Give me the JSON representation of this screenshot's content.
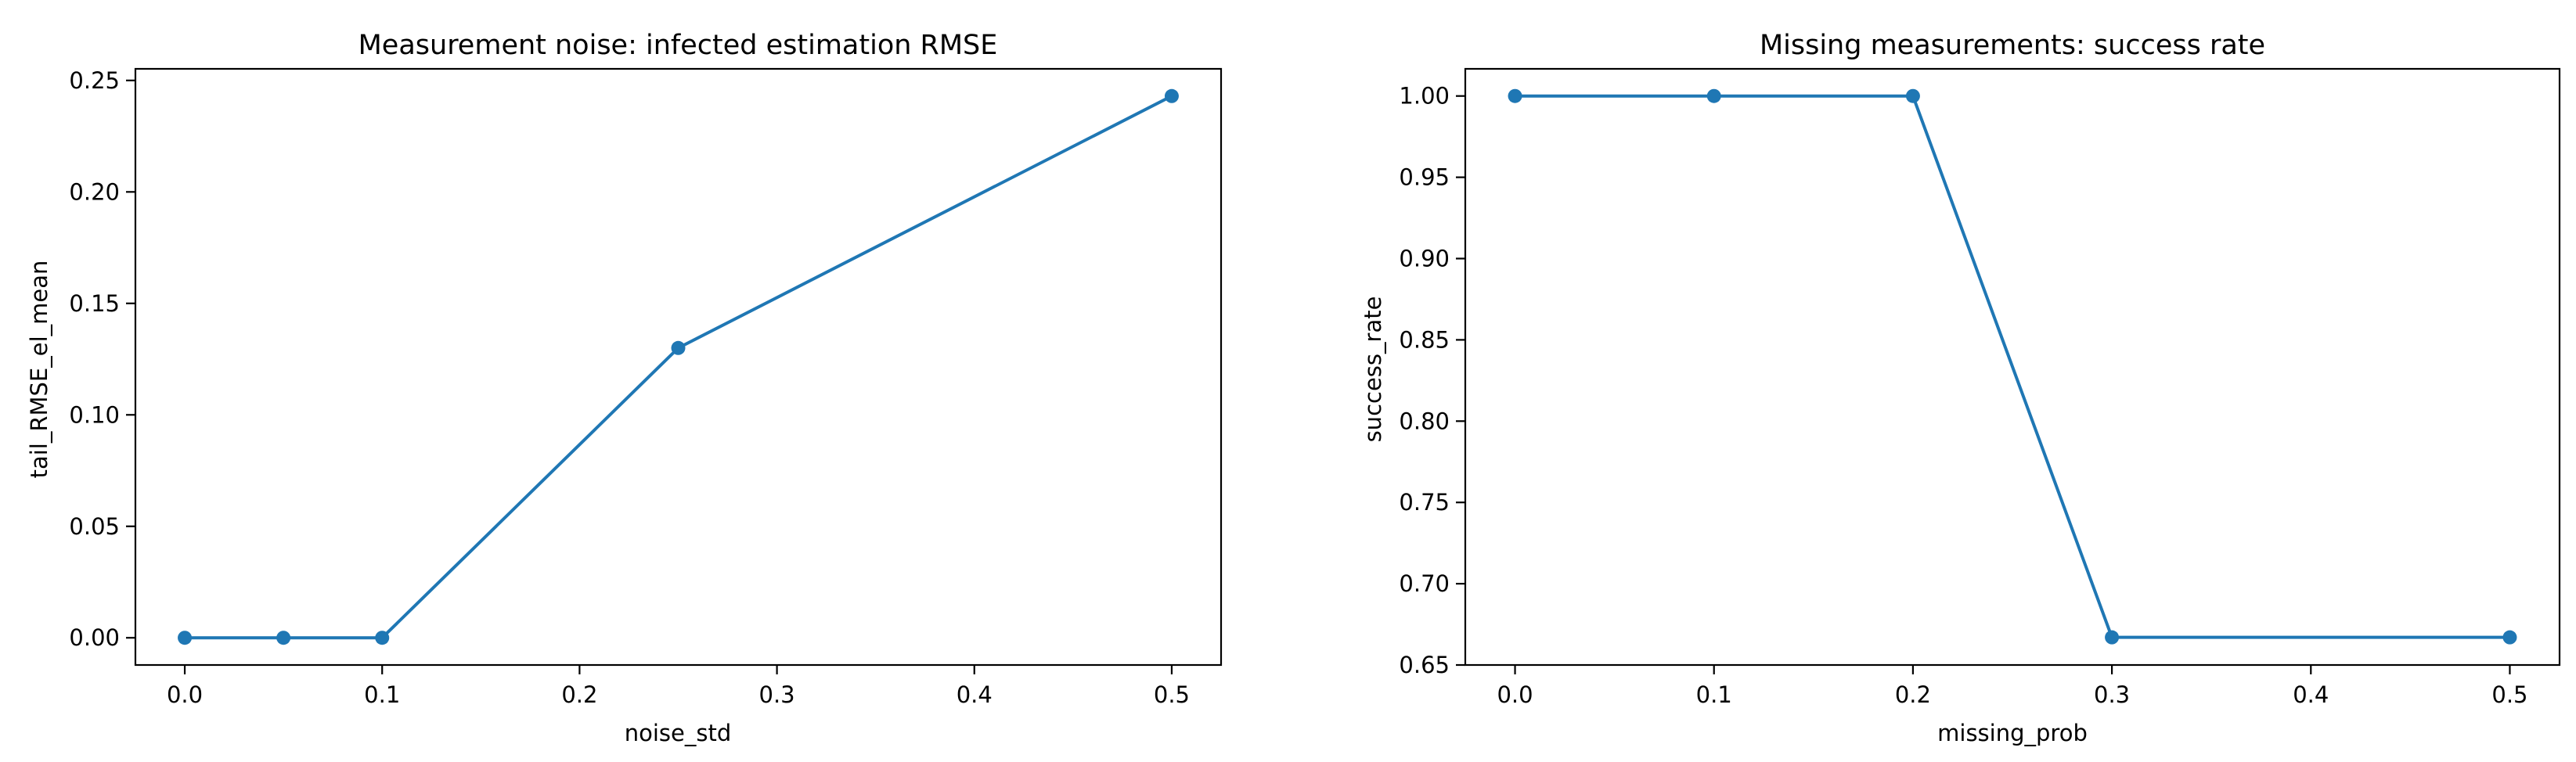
{
  "chart_data": [
    {
      "type": "line",
      "title": "Measurement noise: infected estimation RMSE",
      "xlabel": "noise_std",
      "ylabel": "tail_RMSE_el_mean",
      "x": [
        0.0,
        0.05,
        0.1,
        0.25,
        0.5
      ],
      "series": [
        {
          "values": [
            0.0,
            0.0,
            0.0,
            0.13,
            0.243
          ]
        }
      ],
      "xlim": [
        -0.025,
        0.525
      ],
      "ylim": [
        -0.0122,
        0.2552
      ],
      "xticks": [
        0.0,
        0.1,
        0.2,
        0.3,
        0.4,
        0.5
      ],
      "xtick_labels": [
        "0.0",
        "0.1",
        "0.2",
        "0.3",
        "0.4",
        "0.5"
      ],
      "yticks": [
        0.0,
        0.05,
        0.1,
        0.15,
        0.2,
        0.25
      ],
      "ytick_labels": [
        "0.00",
        "0.05",
        "0.10",
        "0.15",
        "0.20",
        "0.25"
      ],
      "grid": false,
      "marker": "circle",
      "color": "#1f77b4"
    },
    {
      "type": "line",
      "title": "Missing measurements: success rate",
      "xlabel": "missing_prob",
      "ylabel": "success_rate",
      "x": [
        0.0,
        0.1,
        0.2,
        0.3,
        0.5
      ],
      "series": [
        {
          "values": [
            1.0,
            1.0,
            1.0,
            0.667,
            0.667
          ]
        }
      ],
      "xlim": [
        -0.025,
        0.525
      ],
      "ylim": [
        0.65,
        1.0167
      ],
      "xticks": [
        0.0,
        0.1,
        0.2,
        0.3,
        0.4,
        0.5
      ],
      "xtick_labels": [
        "0.0",
        "0.1",
        "0.2",
        "0.3",
        "0.4",
        "0.5"
      ],
      "yticks": [
        0.65,
        0.7,
        0.75,
        0.8,
        0.85,
        0.9,
        0.95,
        1.0
      ],
      "ytick_labels": [
        "0.65",
        "0.70",
        "0.75",
        "0.80",
        "0.85",
        "0.90",
        "0.95",
        "1.00"
      ],
      "grid": false,
      "marker": "circle",
      "color": "#1f77b4"
    }
  ]
}
